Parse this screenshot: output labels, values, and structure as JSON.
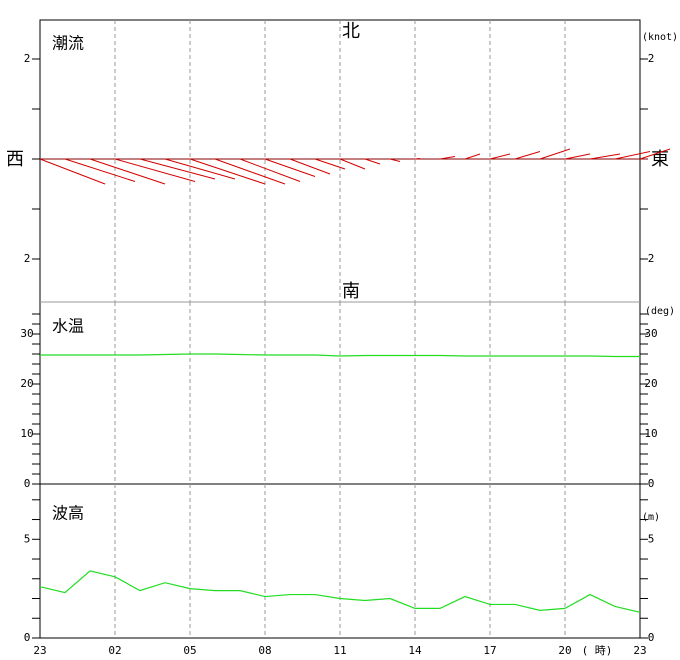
{
  "chart_data": [
    {
      "type": "vector",
      "title": "潮流",
      "unit": "(knot)",
      "north": "北",
      "south": "南",
      "west": "西",
      "east": "東",
      "color": "#d40000",
      "u": [
        1.3,
        1.4,
        1.5,
        1.6,
        1.5,
        1.4,
        1.5,
        1.4,
        1.2,
        1.0,
        0.8,
        0.6,
        0.5,
        0.3,
        0.2,
        0.1,
        0.3,
        0.3,
        0.4,
        0.5,
        0.6,
        0.5,
        0.6,
        0.7,
        0.6
      ],
      "v": [
        -0.5,
        -0.45,
        -0.5,
        -0.45,
        -0.4,
        -0.4,
        -0.5,
        -0.5,
        -0.45,
        -0.35,
        -0.3,
        -0.2,
        -0.2,
        -0.1,
        -0.05,
        0.01,
        0.05,
        0.1,
        0.1,
        0.15,
        0.2,
        0.1,
        0.1,
        0.15,
        0.2
      ],
      "ylim": [
        -2.86,
        2.78
      ],
      "yticks": [
        2,
        {
          "value": -2,
          "label": "2"
        }
      ],
      "minor_yticks": [
        1,
        0,
        -1
      ]
    },
    {
      "type": "line",
      "title": "水温",
      "unit": "(deg)",
      "color": "#22dd22",
      "values": [
        25.8,
        25.8,
        25.8,
        25.8,
        25.8,
        25.9,
        26.0,
        26.0,
        25.9,
        25.8,
        25.8,
        25.8,
        25.6,
        25.7,
        25.7,
        25.7,
        25.7,
        25.6,
        25.6,
        25.6,
        25.6,
        25.6,
        25.6,
        25.5,
        25.5
      ],
      "ylim": [
        0,
        36.4
      ],
      "yticks": [
        0,
        10,
        20,
        30
      ],
      "minor_yticks": [
        2,
        4,
        6,
        8,
        12,
        14,
        16,
        18,
        22,
        24,
        26,
        28,
        32,
        34
      ]
    },
    {
      "type": "line",
      "title": "波高",
      "unit": "(m)",
      "color": "#22dd22",
      "values": [
        2.6,
        2.3,
        3.4,
        3.1,
        2.4,
        2.8,
        2.5,
        2.4,
        2.4,
        2.1,
        2.2,
        2.2,
        2.0,
        1.9,
        2.0,
        1.5,
        1.5,
        2.1,
        1.7,
        1.7,
        1.4,
        1.5,
        2.2,
        1.6,
        1.3
      ],
      "ylim": [
        0,
        7.8
      ],
      "yticks": [
        0,
        5
      ],
      "minor_yticks": [
        1,
        2,
        3,
        4,
        6,
        7
      ],
      "categories": [
        "23",
        null,
        null,
        "02",
        null,
        null,
        "05",
        null,
        null,
        "08",
        null,
        null,
        "11",
        null,
        null,
        "14",
        null,
        null,
        "17",
        null,
        null,
        "20",
        null,
        null,
        "23"
      ],
      "x_label": "( 時)"
    }
  ]
}
